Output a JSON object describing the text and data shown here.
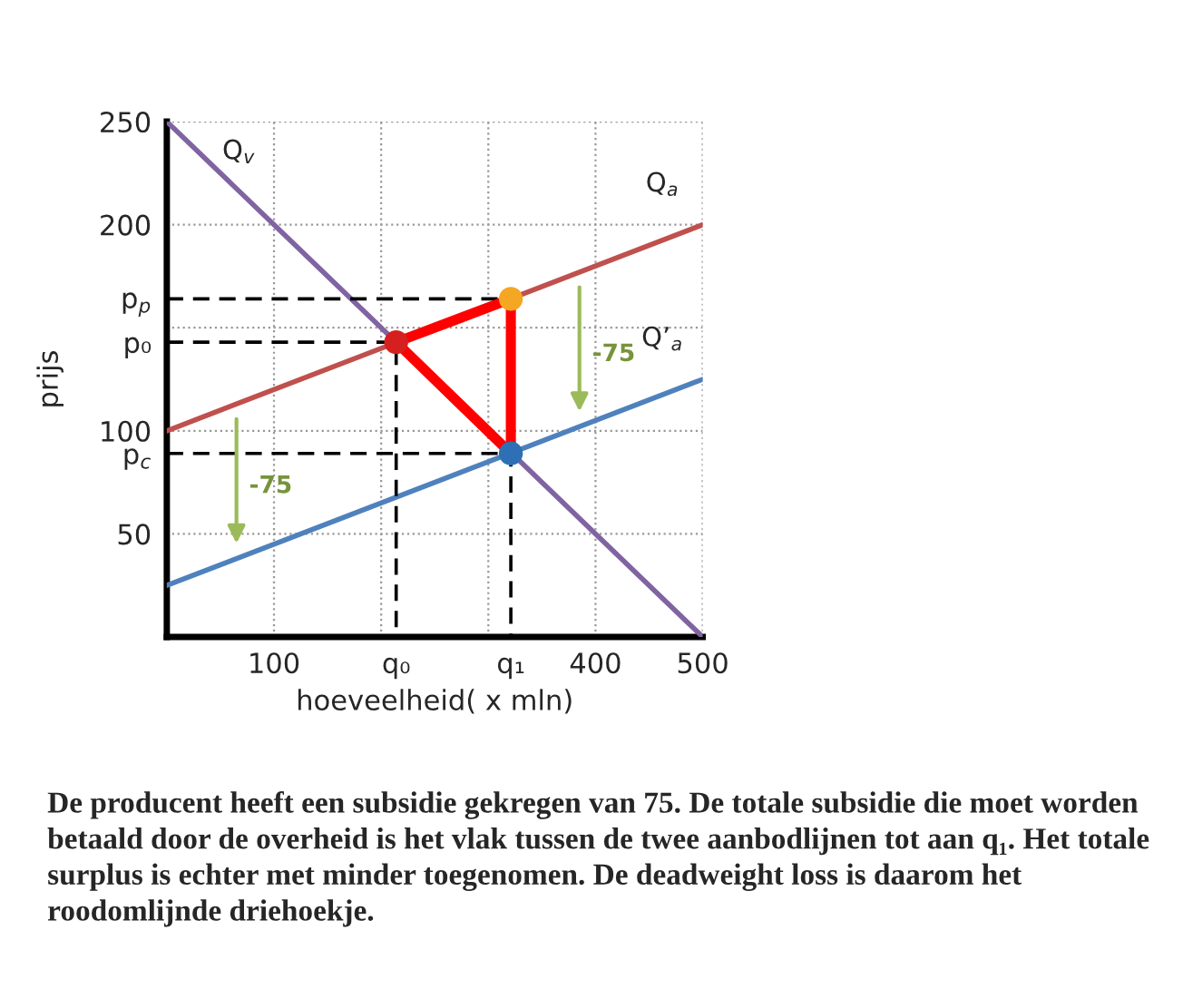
{
  "chart_data": {
    "type": "line",
    "xlabel": "hoeveelheid( x mln)",
    "ylabel": "prijs",
    "xlim": [
      0,
      500
    ],
    "ylim": [
      0,
      250
    ],
    "xticks": [
      100,
      {
        "value": 200,
        "label": null
      },
      {
        "value": 214,
        "label": "q₀"
      },
      {
        "value": 300,
        "label": null
      },
      {
        "value": 321,
        "label": "q₁"
      },
      400,
      500
    ],
    "yticks": [
      50,
      {
        "value": 89,
        "label": "p$_{c}$"
      },
      100,
      {
        "value": 143,
        "label": "p₀"
      },
      {
        "value": 150,
        "label": null
      },
      {
        "value": 164,
        "label": "p$_{p}$"
      },
      200,
      250
    ],
    "grid": true,
    "legend": false,
    "series": [
      {
        "name": "Q$_{v}$",
        "color": "#8064a2",
        "x": [
          0,
          500
        ],
        "values": [
          250,
          0
        ]
      },
      {
        "name": "Q$_{a}$",
        "color": "#c0504d",
        "x": [
          0,
          500
        ],
        "values": [
          100,
          200
        ]
      },
      {
        "name": "Q’$_{a}$",
        "color": "#4f81bd",
        "x": [
          0,
          500
        ],
        "values": [
          25,
          125
        ]
      },
      {
        "color": "#000000",
        "line_style": "dashed",
        "x": [
          0,
          321
        ],
        "values": [
          164,
          164
        ]
      },
      {
        "color": "#000000",
        "line_style": "dashed",
        "x": [
          0,
          214,
          214
        ],
        "values": [
          143,
          143,
          0
        ]
      },
      {
        "color": "#000000",
        "line_style": "dashed",
        "x": [
          0,
          321,
          321
        ],
        "values": [
          89,
          89,
          0
        ]
      },
      {
        "color": "#ff0000",
        "line_style": "solid",
        "x": [
          214,
          321,
          321
        ],
        "values": [
          143,
          164,
          89
        ]
      },
      {
        "color": "#ff0000",
        "line_style": "solid",
        "x": [
          214,
          321
        ],
        "values": [
          143,
          89
        ]
      },
      {
        "type": "scatter",
        "colors": [
          "#d62020",
          "#f5a623",
          "#2f6fb5"
        ],
        "marker": "circle",
        "x": [
          214,
          321,
          321
        ],
        "values": [
          143,
          164,
          89
        ]
      }
    ],
    "annotations": [
      "-75",
      "-75",
      "De producent heeft een subsidie gekregen van 75. De totale subsidie die moet worden betaald door de overheid is het vlak tussen de twee aanbodlijnen tot aan q₁. Het totale surplus is echter met minder toegenomen. De deadweight loss is daarom het roodomlijnde driehoekje."
    ]
  }
}
